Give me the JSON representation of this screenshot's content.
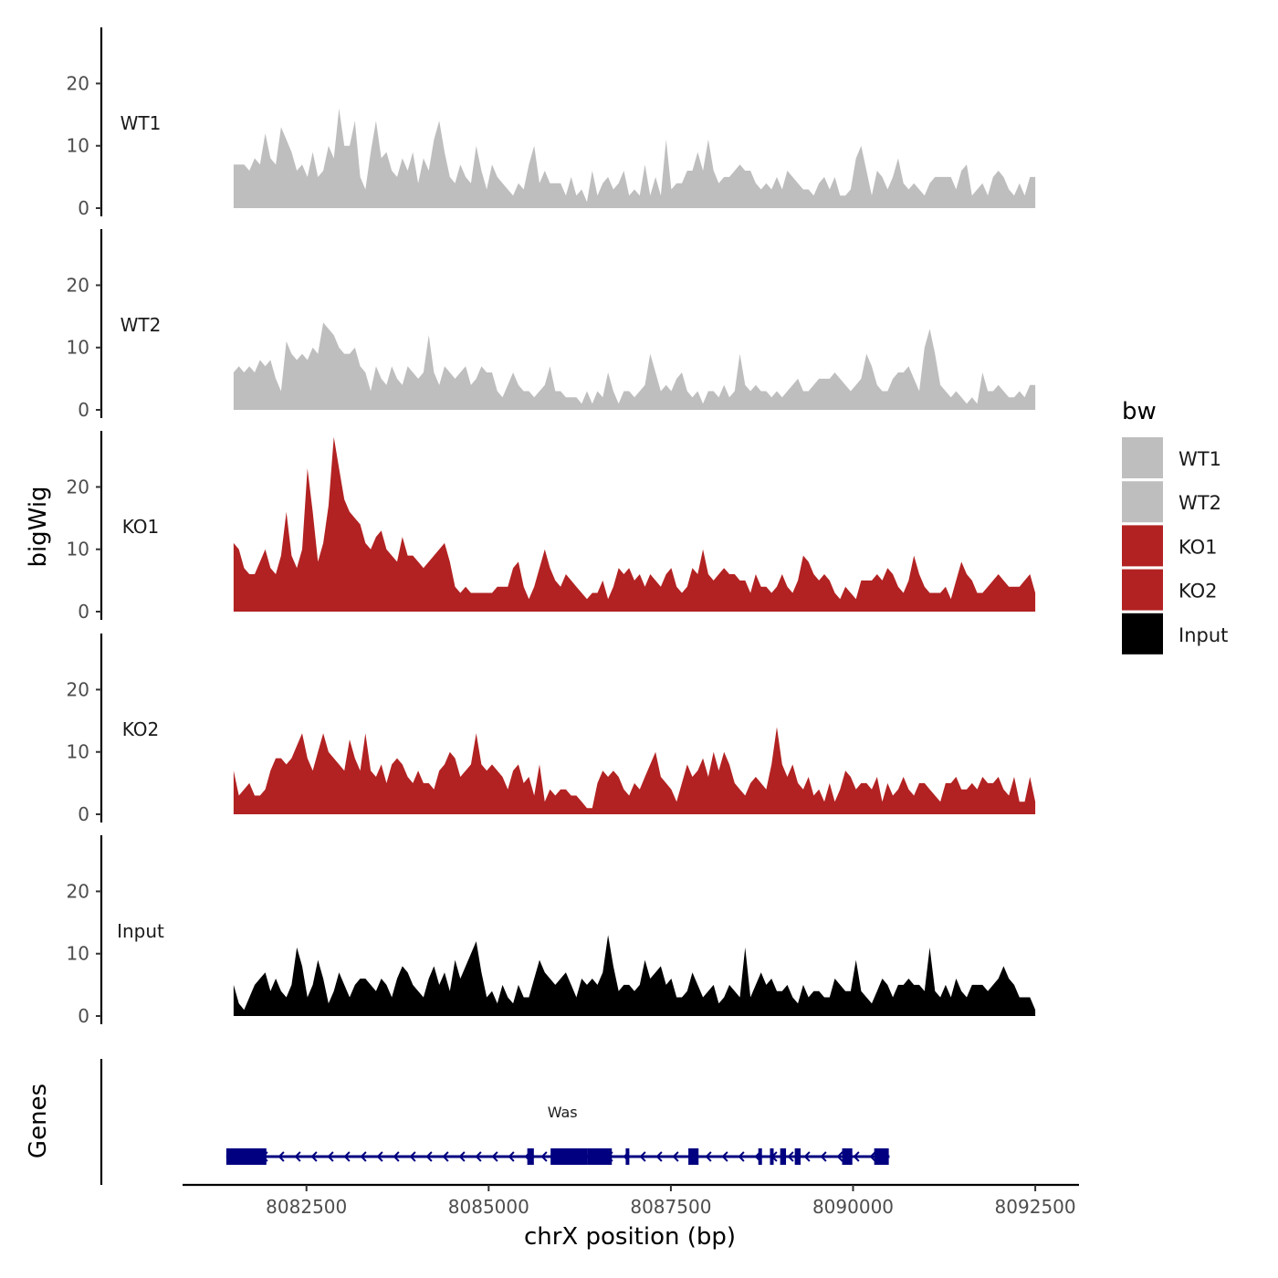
{
  "chart_data": {
    "type": "area",
    "title": "",
    "xlabel": "chrX position (bp)",
    "ylabel": "bigWig",
    "genes_axis_label": "Genes",
    "xlim": [
      8080800,
      8093100
    ],
    "x_ticks": [
      8082500,
      8085000,
      8087500,
      8090000,
      8092500
    ],
    "x_tick_labels": [
      "8082500",
      "8085000",
      "8087500",
      "8090000",
      "8092500"
    ],
    "ylim": [
      0,
      29
    ],
    "y_ticks": [
      0,
      10,
      20
    ],
    "y_tick_labels": [
      "0",
      "10",
      "20"
    ],
    "x_start": 8081500,
    "x_end": 8092500,
    "legend": {
      "title": "bw",
      "position": "right",
      "entries": [
        {
          "label": "WT1",
          "color": "#bebebe"
        },
        {
          "label": "WT2",
          "color": "#bebebe"
        },
        {
          "label": "KO1",
          "color": "#b22222"
        },
        {
          "label": "KO2",
          "color": "#b22222"
        },
        {
          "label": "Input",
          "color": "#000000"
        }
      ]
    },
    "series": [
      {
        "name": "WT1",
        "color": "#bebebe",
        "values": [
          7,
          7,
          7,
          6,
          8,
          7,
          12,
          8,
          7,
          13,
          11,
          9,
          6,
          7,
          5,
          9,
          5,
          6,
          10,
          8,
          16,
          10,
          10,
          14,
          5,
          3,
          9,
          14,
          8,
          9,
          6,
          5,
          8,
          6,
          9,
          4,
          8,
          6,
          11,
          14,
          9,
          5,
          4,
          7,
          5,
          4,
          10,
          6,
          3,
          7,
          5,
          4,
          3,
          2,
          4,
          3,
          7,
          10,
          4,
          6,
          4,
          4,
          4,
          2,
          5,
          2,
          3,
          1,
          6,
          2,
          4,
          5,
          3,
          4,
          6,
          2,
          3,
          2,
          7,
          2,
          5,
          2,
          11,
          3,
          4,
          4,
          6,
          6,
          9,
          6,
          11,
          6,
          4,
          5,
          5,
          6,
          7,
          6,
          6,
          4,
          3,
          4,
          3,
          5,
          3,
          6,
          5,
          4,
          3,
          3,
          2,
          4,
          5,
          3,
          5,
          2,
          2,
          3,
          8,
          10,
          6,
          2,
          6,
          5,
          3,
          5,
          8,
          4,
          3,
          4,
          3,
          2,
          4,
          5,
          5,
          5,
          5,
          3,
          6,
          7,
          2,
          3,
          4,
          2,
          5,
          6,
          5,
          3,
          2,
          4,
          2,
          5,
          5
        ]
      },
      {
        "name": "WT2",
        "color": "#bebebe",
        "values": [
          6,
          7,
          6,
          7,
          6,
          8,
          7,
          8,
          5,
          3,
          11,
          9,
          8,
          9,
          8,
          10,
          9,
          14,
          13,
          12,
          10,
          9,
          9,
          10,
          7,
          6,
          3,
          7,
          5,
          4,
          7,
          5,
          4,
          7,
          6,
          5,
          6,
          12,
          6,
          4,
          7,
          6,
          5,
          6,
          7,
          4,
          5,
          7,
          6,
          6,
          3,
          2,
          4,
          6,
          4,
          3,
          3,
          2,
          3,
          4,
          7,
          3,
          3,
          2,
          2,
          2,
          1,
          3,
          1,
          3,
          2,
          6,
          3,
          1,
          3,
          3,
          2,
          3,
          4,
          9,
          6,
          3,
          4,
          3,
          5,
          6,
          3,
          2,
          3,
          1,
          3,
          3,
          2,
          4,
          2,
          3,
          9,
          4,
          3,
          4,
          3,
          3,
          2,
          3,
          2,
          3,
          4,
          5,
          3,
          3,
          4,
          5,
          5,
          5,
          6,
          5,
          4,
          3,
          4,
          5,
          9,
          7,
          4,
          3,
          3,
          5,
          6,
          6,
          7,
          5,
          3,
          10,
          13,
          9,
          4,
          3,
          2,
          3,
          2,
          1,
          2,
          1,
          6,
          3,
          3,
          4,
          3,
          2,
          2,
          3,
          2,
          4,
          4
        ]
      },
      {
        "name": "KO1",
        "color": "#b22222",
        "values": [
          11,
          10,
          7,
          6,
          6,
          8,
          10,
          7,
          6,
          9,
          16,
          9,
          7,
          10,
          23,
          16,
          8,
          11,
          17,
          28,
          23,
          18,
          16,
          15,
          14,
          11,
          10,
          12,
          13,
          10,
          9,
          8,
          12,
          9,
          9,
          8,
          7,
          8,
          9,
          10,
          11,
          8,
          4,
          3,
          4,
          3,
          3,
          3,
          3,
          3,
          4,
          4,
          4,
          7,
          8,
          4,
          2,
          4,
          7,
          10,
          7,
          5,
          4,
          6,
          5,
          4,
          3,
          2,
          3,
          3,
          5,
          2,
          4,
          7,
          6,
          7,
          5,
          6,
          4,
          6,
          5,
          4,
          6,
          7,
          4,
          3,
          4,
          7,
          6,
          10,
          6,
          5,
          6,
          7,
          6,
          6,
          5,
          5,
          3,
          6,
          4,
          4,
          3,
          4,
          6,
          4,
          3,
          5,
          9,
          8,
          6,
          5,
          6,
          5,
          3,
          2,
          4,
          3,
          2,
          5,
          5,
          5,
          6,
          5,
          7,
          6,
          4,
          3,
          5,
          9,
          6,
          4,
          3,
          3,
          3,
          4,
          2,
          5,
          8,
          6,
          5,
          3,
          3,
          4,
          5,
          6,
          5,
          4,
          4,
          4,
          5,
          6,
          3
        ]
      },
      {
        "name": "KO2",
        "color": "#b22222",
        "values": [
          7,
          3,
          4,
          5,
          3,
          3,
          4,
          7,
          9,
          9,
          8,
          9,
          11,
          13,
          9,
          7,
          10,
          13,
          10,
          9,
          8,
          7,
          12,
          9,
          7,
          13,
          7,
          6,
          8,
          5,
          8,
          9,
          8,
          6,
          5,
          7,
          5,
          5,
          4,
          7,
          8,
          10,
          9,
          6,
          7,
          8,
          13,
          8,
          7,
          8,
          7,
          6,
          4,
          7,
          8,
          5,
          6,
          3,
          8,
          2,
          4,
          3,
          4,
          4,
          3,
          3,
          2,
          1,
          1,
          5,
          7,
          6,
          7,
          6,
          4,
          3,
          5,
          4,
          6,
          8,
          10,
          6,
          5,
          4,
          2,
          5,
          8,
          6,
          7,
          9,
          6,
          10,
          7,
          10,
          8,
          5,
          4,
          3,
          5,
          6,
          5,
          4,
          8,
          14,
          8,
          6,
          8,
          5,
          4,
          6,
          3,
          4,
          2,
          5,
          2,
          4,
          7,
          6,
          4,
          5,
          5,
          4,
          6,
          2,
          5,
          3,
          4,
          6,
          4,
          3,
          5,
          5,
          4,
          3,
          2,
          5,
          5,
          6,
          4,
          4,
          5,
          4,
          6,
          5,
          5,
          6,
          4,
          3,
          6,
          2,
          2,
          6,
          2
        ]
      },
      {
        "name": "Input",
        "color": "#000000",
        "values": [
          5,
          2,
          1,
          3,
          5,
          6,
          7,
          4,
          6,
          4,
          3,
          5,
          11,
          8,
          3,
          5,
          9,
          6,
          2,
          4,
          7,
          5,
          3,
          5,
          6,
          6,
          5,
          4,
          6,
          5,
          3,
          6,
          8,
          7,
          5,
          4,
          3,
          6,
          8,
          5,
          7,
          4,
          9,
          6,
          8,
          10,
          12,
          7,
          3,
          4,
          2,
          5,
          3,
          2,
          5,
          3,
          3,
          6,
          9,
          7,
          6,
          5,
          6,
          7,
          5,
          3,
          6,
          5,
          6,
          5,
          7,
          13,
          8,
          4,
          5,
          5,
          4,
          5,
          9,
          6,
          7,
          8,
          5,
          6,
          3,
          3,
          4,
          7,
          5,
          3,
          4,
          5,
          2,
          3,
          5,
          4,
          3,
          11,
          3,
          5,
          7,
          5,
          6,
          4,
          4,
          5,
          3,
          2,
          5,
          3,
          4,
          4,
          3,
          3,
          6,
          5,
          4,
          4,
          9,
          4,
          3,
          2,
          4,
          6,
          5,
          3,
          5,
          5,
          6,
          5,
          5,
          4,
          11,
          4,
          3,
          5,
          3,
          6,
          4,
          3,
          5,
          5,
          5,
          4,
          5,
          6,
          8,
          6,
          5,
          3,
          3,
          3,
          1
        ]
      }
    ],
    "genes": [
      {
        "name": "Was",
        "start": 8081400,
        "end": 8090500,
        "strand": "-",
        "color": "#000080",
        "exons": [
          [
            8081400,
            8081950
          ],
          [
            8085530,
            8085620
          ],
          [
            8085850,
            8086360
          ],
          [
            8086360,
            8086690
          ],
          [
            8086880,
            8086920
          ],
          [
            8087740,
            8087880
          ],
          [
            8088700,
            8088740
          ],
          [
            8088860,
            8088900
          ],
          [
            8089000,
            8089080
          ],
          [
            8089200,
            8089280
          ],
          [
            8089850,
            8089990
          ],
          [
            8090290,
            8090490
          ]
        ]
      }
    ]
  }
}
